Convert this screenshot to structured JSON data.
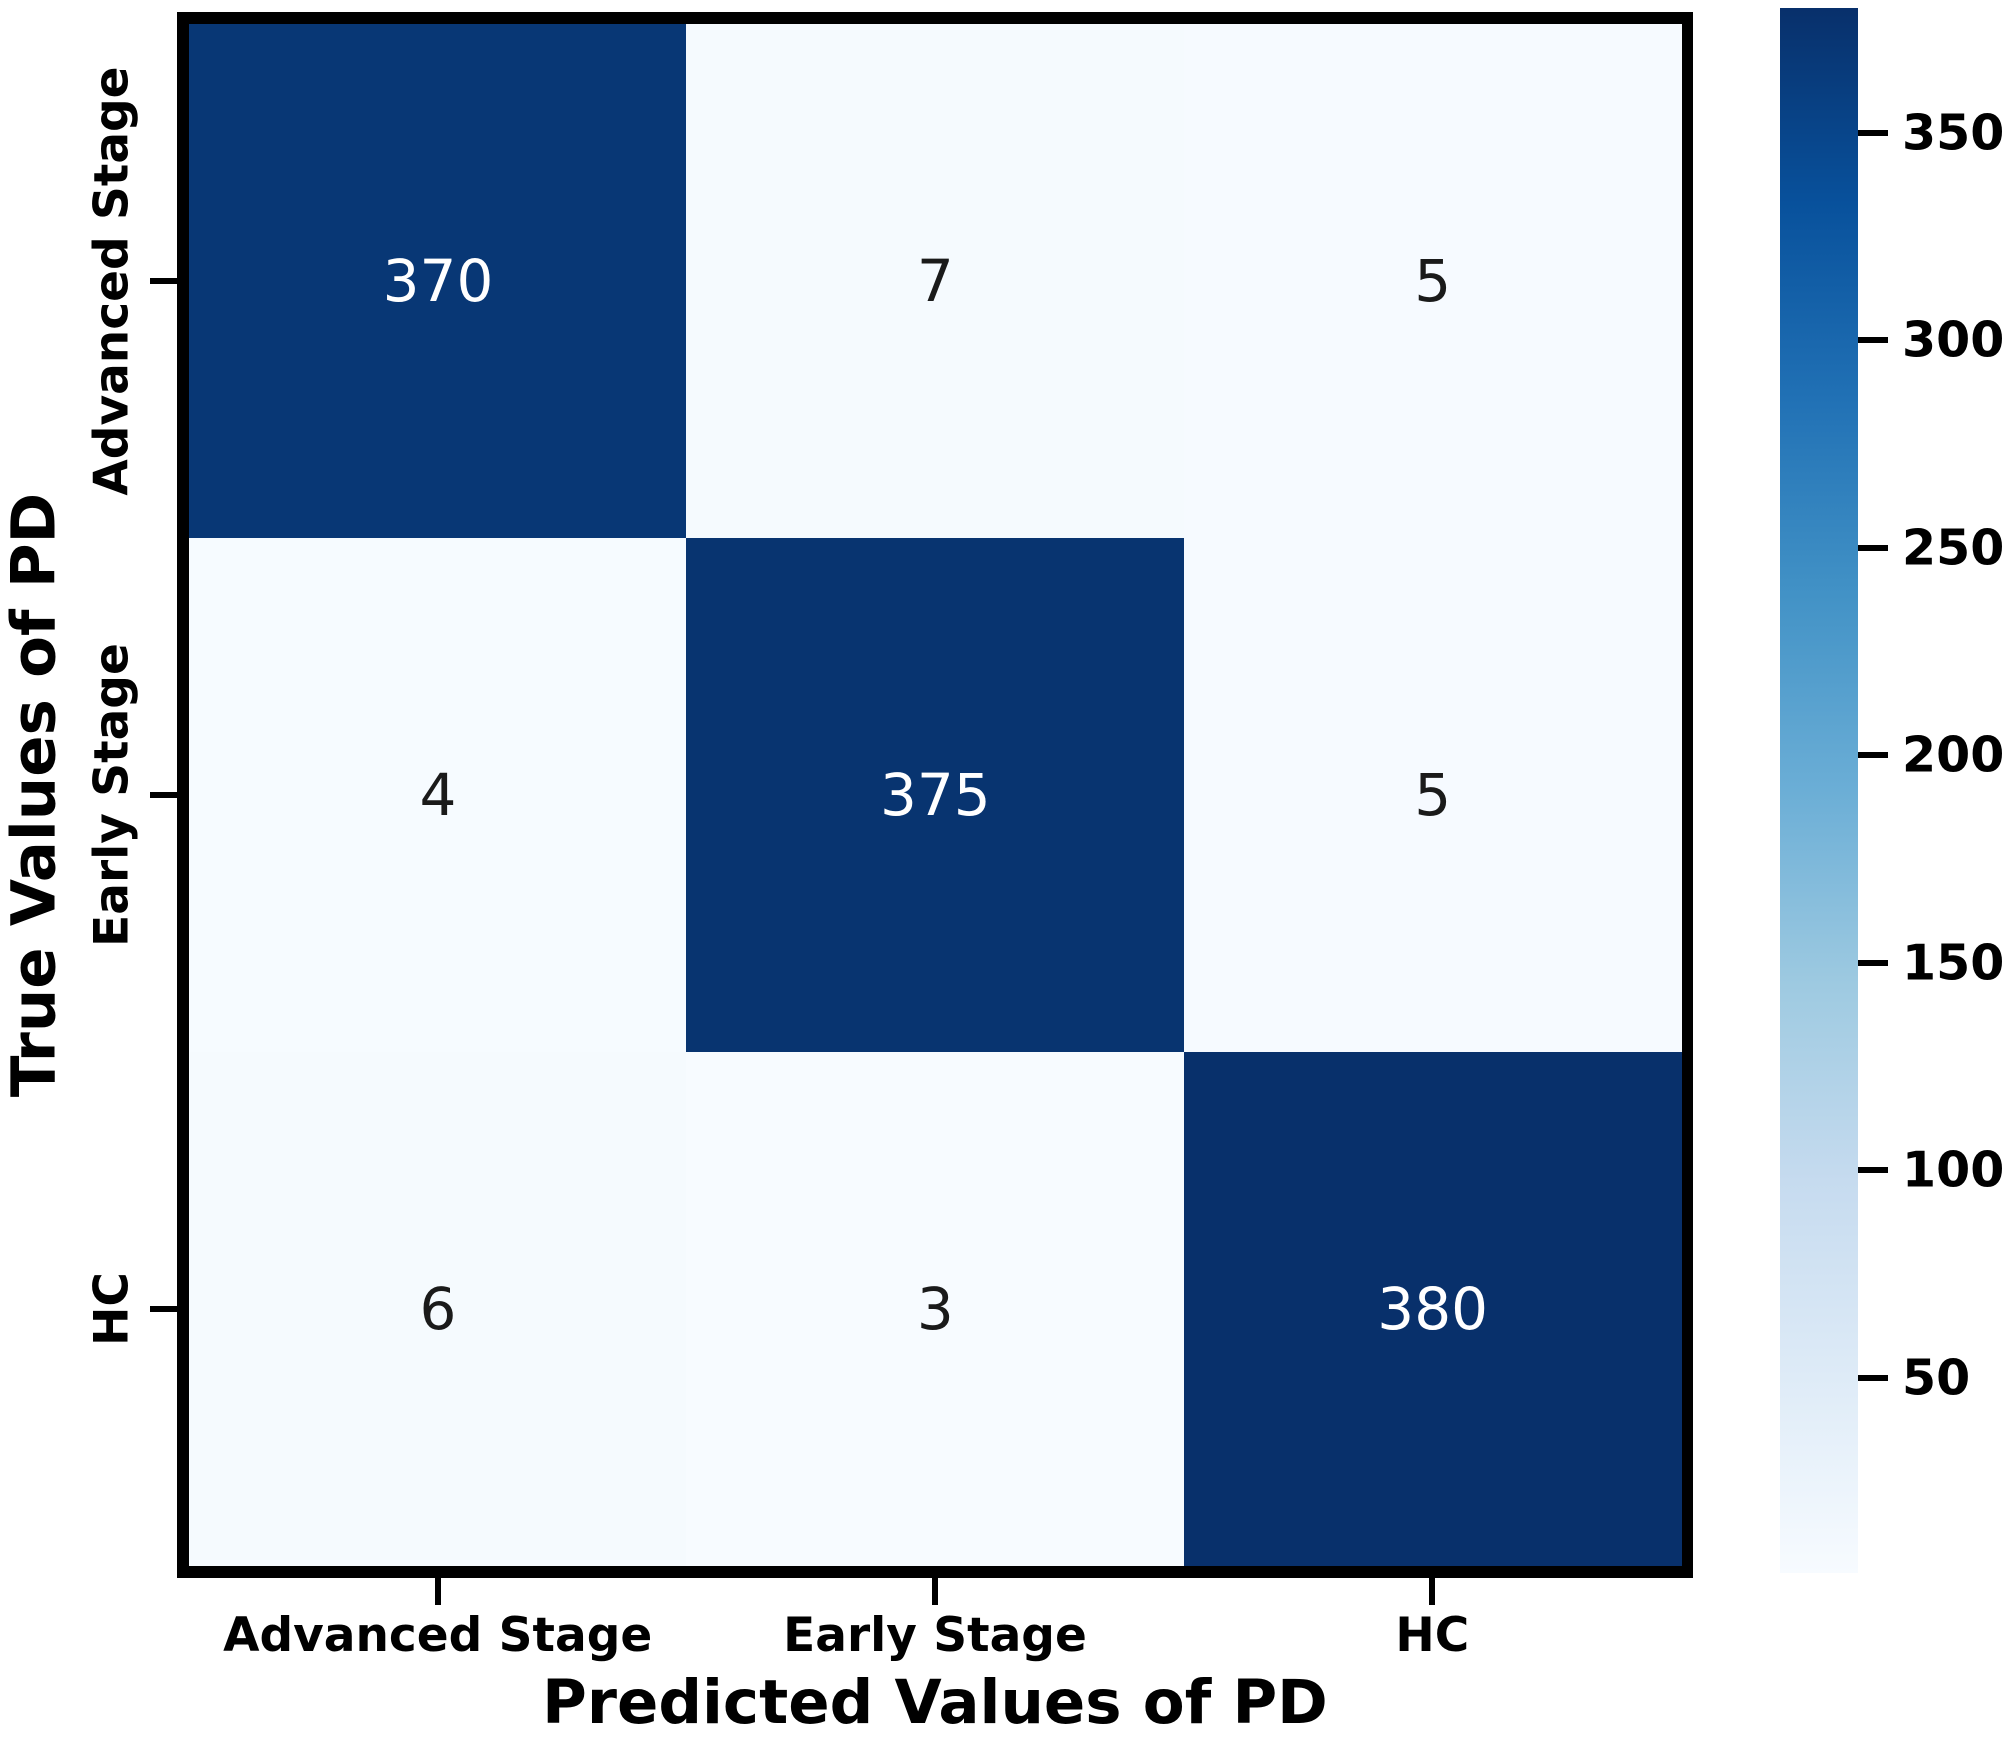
{
  "chart_data": {
    "type": "heatmap",
    "title": "",
    "xlabel": "Predicted Values of PD",
    "ylabel": "True Values of PD",
    "x_categories": [
      "Advanced Stage",
      "Early Stage",
      "HC"
    ],
    "y_categories": [
      "Advanced Stage",
      "Early Stage",
      "HC"
    ],
    "values": [
      [
        370,
        7,
        5
      ],
      [
        4,
        375,
        5
      ],
      [
        6,
        3,
        380
      ]
    ],
    "annotations_shown": true,
    "grid": false,
    "colorbar": {
      "position": "right",
      "vmin": 3,
      "vmax": 380,
      "tick_values": [
        50,
        100,
        150,
        200,
        250,
        300,
        350
      ],
      "colormap": "Blues"
    },
    "colors": {
      "background": "#ffffff",
      "axes_border": "#000000",
      "annot_on_dark": "#ffffff",
      "annot_on_light": "#1a1a1a",
      "cmap_stops": [
        [
          0.0,
          "#f7fbff"
        ],
        [
          0.125,
          "#deebf7"
        ],
        [
          0.25,
          "#c6dbef"
        ],
        [
          0.375,
          "#9ecae1"
        ],
        [
          0.5,
          "#6baed6"
        ],
        [
          0.625,
          "#4292c6"
        ],
        [
          0.75,
          "#2171b5"
        ],
        [
          0.875,
          "#08519c"
        ],
        [
          1.0,
          "#08306b"
        ]
      ]
    }
  }
}
